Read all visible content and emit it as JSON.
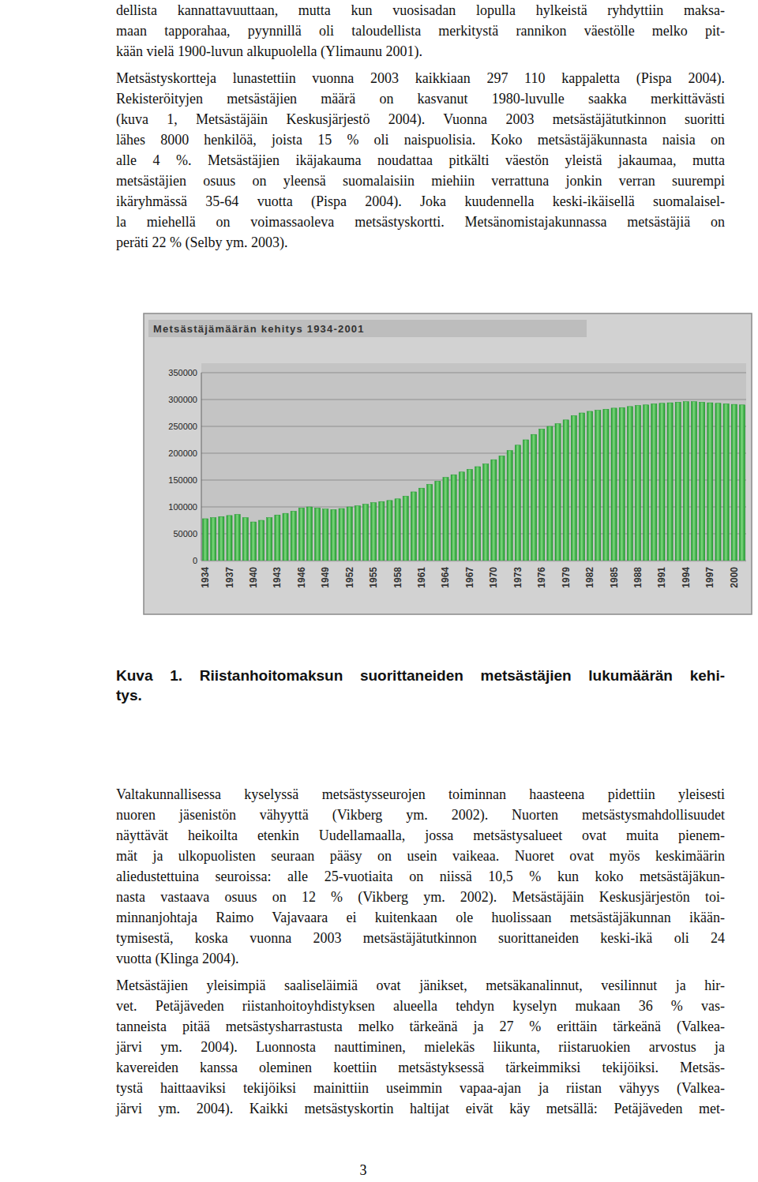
{
  "paragraphs_top": [
    {
      "lines": [
        "dellista kannattavuuttaan, mutta kun vuosisadan lopulla hylkeistä ryhdyttiin maksa-",
        "maan tapporahaa, pyynnillä oli taloudellista merkitystä rannikon väestölle melko pit-",
        "kään vielä 1900-luvun alkupuolella (Ylimaunu 2001)."
      ]
    },
    {
      "lines": [
        "Metsästyskortteja lunastettiin vuonna 2003 kaikkiaan 297 110 kappaletta (Pispa 2004).",
        "Rekisteröityjen metsästäjien määrä on kasvanut 1980-luvulle saakka merkittävästi",
        "(kuva 1, Metsästäjäin Keskusjärjestö 2004). Vuonna 2003 metsästäjätutkinnon suoritti",
        "lähes 8000 henkilöä, joista 15 % oli naispuolisia. Koko metsästäjäkunnasta naisia on",
        "alle 4 %. Metsästäjien ikäjakauma noudattaa pitkälti väestön yleistä jakaumaa, mutta",
        "metsästäjien osuus on yleensä suomalaisiin miehiin verrattuna jonkin verran suurempi",
        "ikäryhmässä 35-64 vuotta (Pispa 2004). Joka kuudennella keski-ikäisellä suomalaisel-",
        "la miehellä on voimassaoleva metsästyskortti. Metsänomistajakunnassa metsästäjiä on",
        "peräti 22 % (Selby ym. 2003)."
      ]
    }
  ],
  "chart_data": {
    "type": "bar",
    "title": "Metsästäjämäärän kehitys 1934-2001",
    "categories": [
      "1934",
      null,
      null,
      "1937",
      null,
      null,
      "1940",
      null,
      null,
      "1943",
      null,
      null,
      "1946",
      null,
      null,
      "1949",
      null,
      null,
      "1952",
      null,
      null,
      "1955",
      null,
      null,
      "1958",
      null,
      null,
      "1961",
      null,
      null,
      "1964",
      null,
      null,
      "1967",
      null,
      null,
      "1970",
      null,
      null,
      "1973",
      null,
      null,
      "1976",
      null,
      null,
      "1979",
      null,
      null,
      "1982",
      null,
      null,
      "1985",
      null,
      null,
      "1988",
      null,
      null,
      "1991",
      null,
      null,
      "1994",
      null,
      null,
      "1997",
      null,
      null,
      "2000",
      null
    ],
    "values": [
      78000,
      80000,
      82000,
      84000,
      86000,
      80000,
      72000,
      75000,
      80000,
      85000,
      88000,
      92000,
      98000,
      100000,
      98000,
      96000,
      95000,
      97000,
      100000,
      102000,
      105000,
      108000,
      110000,
      112000,
      115000,
      120000,
      128000,
      135000,
      142000,
      148000,
      155000,
      160000,
      165000,
      170000,
      175000,
      180000,
      188000,
      195000,
      205000,
      215000,
      225000,
      235000,
      245000,
      250000,
      255000,
      262000,
      270000,
      275000,
      278000,
      280000,
      282000,
      284000,
      285000,
      287000,
      289000,
      290000,
      292000,
      293000,
      294000,
      295000,
      296000,
      296000,
      295000,
      294000,
      293000,
      292000,
      291000,
      290000
    ],
    "color": "#1e9a2c",
    "ylim": [
      0,
      350000
    ],
    "yticks": [
      0,
      50000,
      100000,
      150000,
      200000,
      250000,
      300000,
      350000
    ],
    "grid": true
  },
  "caption": {
    "lines": [
      "Kuva 1. Riistanhoitomaksun suorittaneiden metsästäjien lukumäärän kehi-",
      "tys."
    ]
  },
  "paragraphs_bottom": [
    {
      "lines": [
        "Valtakunnallisessa kyselyssä metsästysseurojen toiminnan haasteena pidettiin yleisesti",
        "nuoren jäsenistön vähyyttä (Vikberg ym. 2002). Nuorten metsästysmahdollisuudet",
        "näyttävät heikoilta etenkin Uudellamaalla, jossa metsästysalueet ovat muita pienem-",
        "mät ja ulkopuolisten seuraan pääsy on usein vaikeaa. Nuoret ovat myös keskimäärin",
        "aliedustettuina seuroissa: alle 25-vuotiaita on niissä 10,5 % kun koko metsästäjäkun-",
        "nasta vastaava osuus on 12 % (Vikberg ym. 2002). Metsästäjäin Keskusjärjestön toi-",
        "minnanjohtaja Raimo Vajavaara ei kuitenkaan ole huolissaan metsästäjäkunnan ikään-",
        "tymisestä, koska vuonna 2003 metsästäjätutkinnon suorittaneiden keski-ikä oli 24",
        "vuotta (Klinga 2004)."
      ]
    },
    {
      "lines": [
        "Metsästäjien yleisimpiä saaliseläimiä ovat jänikset, metsäkanalinnut, vesilinnut ja hir-",
        "vet. Petäjäveden riistanhoitoyhdistyksen alueella tehdyn kyselyn mukaan 36 % vas-",
        "tanneista pitää metsästysharrastusta melko tärkeänä ja 27 % erittäin tärkeänä (Valkea-",
        "järvi ym. 2004). Luonnosta nauttiminen, mielekäs liikunta, riistaruokien arvostus ja",
        "kavereiden kanssa oleminen koettiin metsästyksessä tärkeimmiksi tekijöiksi. Metsäs-",
        "tystä haittaaviksi tekijöiksi mainittiin useimmin vapaa-ajan ja riistan vähyys (Valkea-",
        "järvi ym. 2004). Kaikki metsästyskortin haltijat eivät käy metsällä: Petäjäveden met-"
      ]
    }
  ],
  "page_number": "3"
}
